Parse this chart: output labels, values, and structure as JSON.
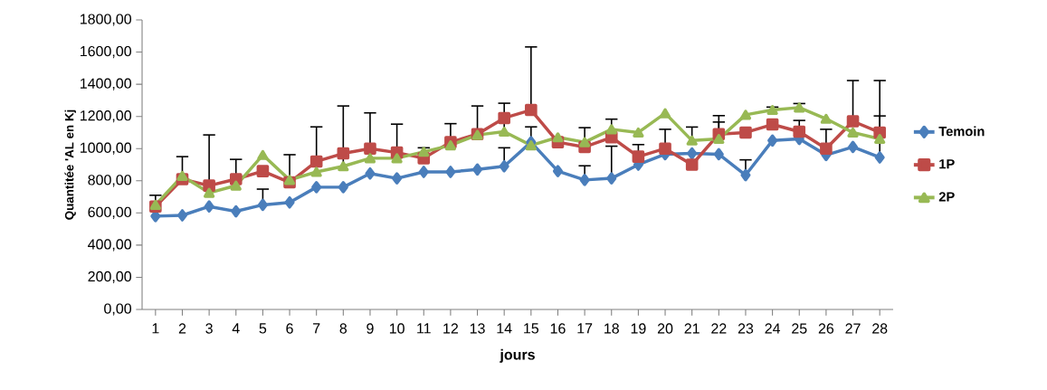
{
  "chart_data": {
    "type": "line",
    "xlabel": "jours",
    "ylabel": "Quantitée 'AL en Kj",
    "categories": [
      "1",
      "2",
      "3",
      "4",
      "5",
      "6",
      "7",
      "8",
      "9",
      "10",
      "11",
      "12",
      "13",
      "14",
      "15",
      "16",
      "17",
      "18",
      "19",
      "20",
      "21",
      "22",
      "23",
      "24",
      "25",
      "26",
      "27",
      "28"
    ],
    "ylim": [
      0,
      1800
    ],
    "yticks": [
      {
        "value": 0,
        "label": "0,00"
      },
      {
        "value": 200,
        "label": "200,00"
      },
      {
        "value": 400,
        "label": "400,00"
      },
      {
        "value": 600,
        "label": "600,00"
      },
      {
        "value": 800,
        "label": "800,00"
      },
      {
        "value": 1000,
        "label": "1000,00"
      },
      {
        "value": 1200,
        "label": "1200,00"
      },
      {
        "value": 1400,
        "label": "1400,00"
      },
      {
        "value": 1600,
        "label": "1600,00"
      },
      {
        "value": 1800,
        "label": "1800,00"
      }
    ],
    "grid": false,
    "legend": "right",
    "line_style": "solid",
    "series": [
      {
        "name": "Temoin",
        "color": "#4a7ebb",
        "marker": "diamond",
        "values": [
          580,
          585,
          640,
          610,
          650,
          665,
          760,
          760,
          845,
          815,
          855,
          855,
          870,
          890,
          1040,
          860,
          805,
          815,
          900,
          965,
          970,
          965,
          835,
          1050,
          1060,
          960,
          1010,
          945
        ],
        "errors": [
          null,
          null,
          null,
          null,
          [
            650,
            748
          ],
          null,
          null,
          null,
          null,
          null,
          null,
          null,
          null,
          [
            890,
            1005
          ],
          [
            1040,
            1135
          ],
          null,
          [
            805,
            893
          ],
          [
            815,
            1015
          ],
          [
            900,
            1025
          ],
          null,
          null,
          null,
          [
            835,
            930
          ],
          null,
          [
            1060,
            1175
          ],
          null,
          null,
          [
            945,
            1203
          ]
        ]
      },
      {
        "name": "1P",
        "color": "#be4b48",
        "marker": "square",
        "values": [
          640,
          810,
          770,
          810,
          860,
          790,
          920,
          970,
          1000,
          975,
          940,
          1040,
          1090,
          1190,
          1240,
          1040,
          1010,
          1070,
          950,
          1000,
          900,
          1090,
          1100,
          1150,
          1105,
          1000,
          1170,
          1100
        ],
        "errors": [
          [
            640,
            710
          ],
          null,
          [
            770,
            1085
          ],
          null,
          null,
          null,
          [
            920,
            1135
          ],
          null,
          [
            1000,
            1222
          ],
          null,
          null,
          null,
          [
            1090,
            1265
          ],
          null,
          [
            1240,
            1632
          ],
          null,
          [
            1010,
            1130
          ],
          null,
          null,
          [
            1000,
            1120
          ],
          null,
          [
            1090,
            1205
          ],
          null,
          null,
          null,
          [
            1000,
            1120
          ],
          [
            1170,
            1423
          ],
          null
        ]
      },
      {
        "name": "2P",
        "color": "#98b954",
        "marker": "triangle",
        "values": [
          650,
          830,
          725,
          770,
          960,
          805,
          855,
          890,
          940,
          940,
          980,
          1020,
          1085,
          1105,
          1020,
          1070,
          1040,
          1120,
          1100,
          1220,
          1050,
          1060,
          1210,
          1240,
          1255,
          1185,
          1100,
          1060
        ],
        "errors": [
          null,
          [
            830,
            950
          ],
          null,
          [
            770,
            933
          ],
          null,
          [
            805,
            962
          ],
          null,
          [
            890,
            1265
          ],
          null,
          [
            940,
            1152
          ],
          [
            980,
            1005
          ],
          [
            1020,
            1155
          ],
          null,
          [
            1105,
            1282
          ],
          null,
          null,
          null,
          [
            1120,
            1183
          ],
          null,
          null,
          [
            1050,
            1134
          ],
          [
            1060,
            1165
          ],
          null,
          [
            1240,
            1258
          ],
          [
            1255,
            1280
          ],
          null,
          null,
          [
            1060,
            1423
          ]
        ]
      }
    ]
  }
}
